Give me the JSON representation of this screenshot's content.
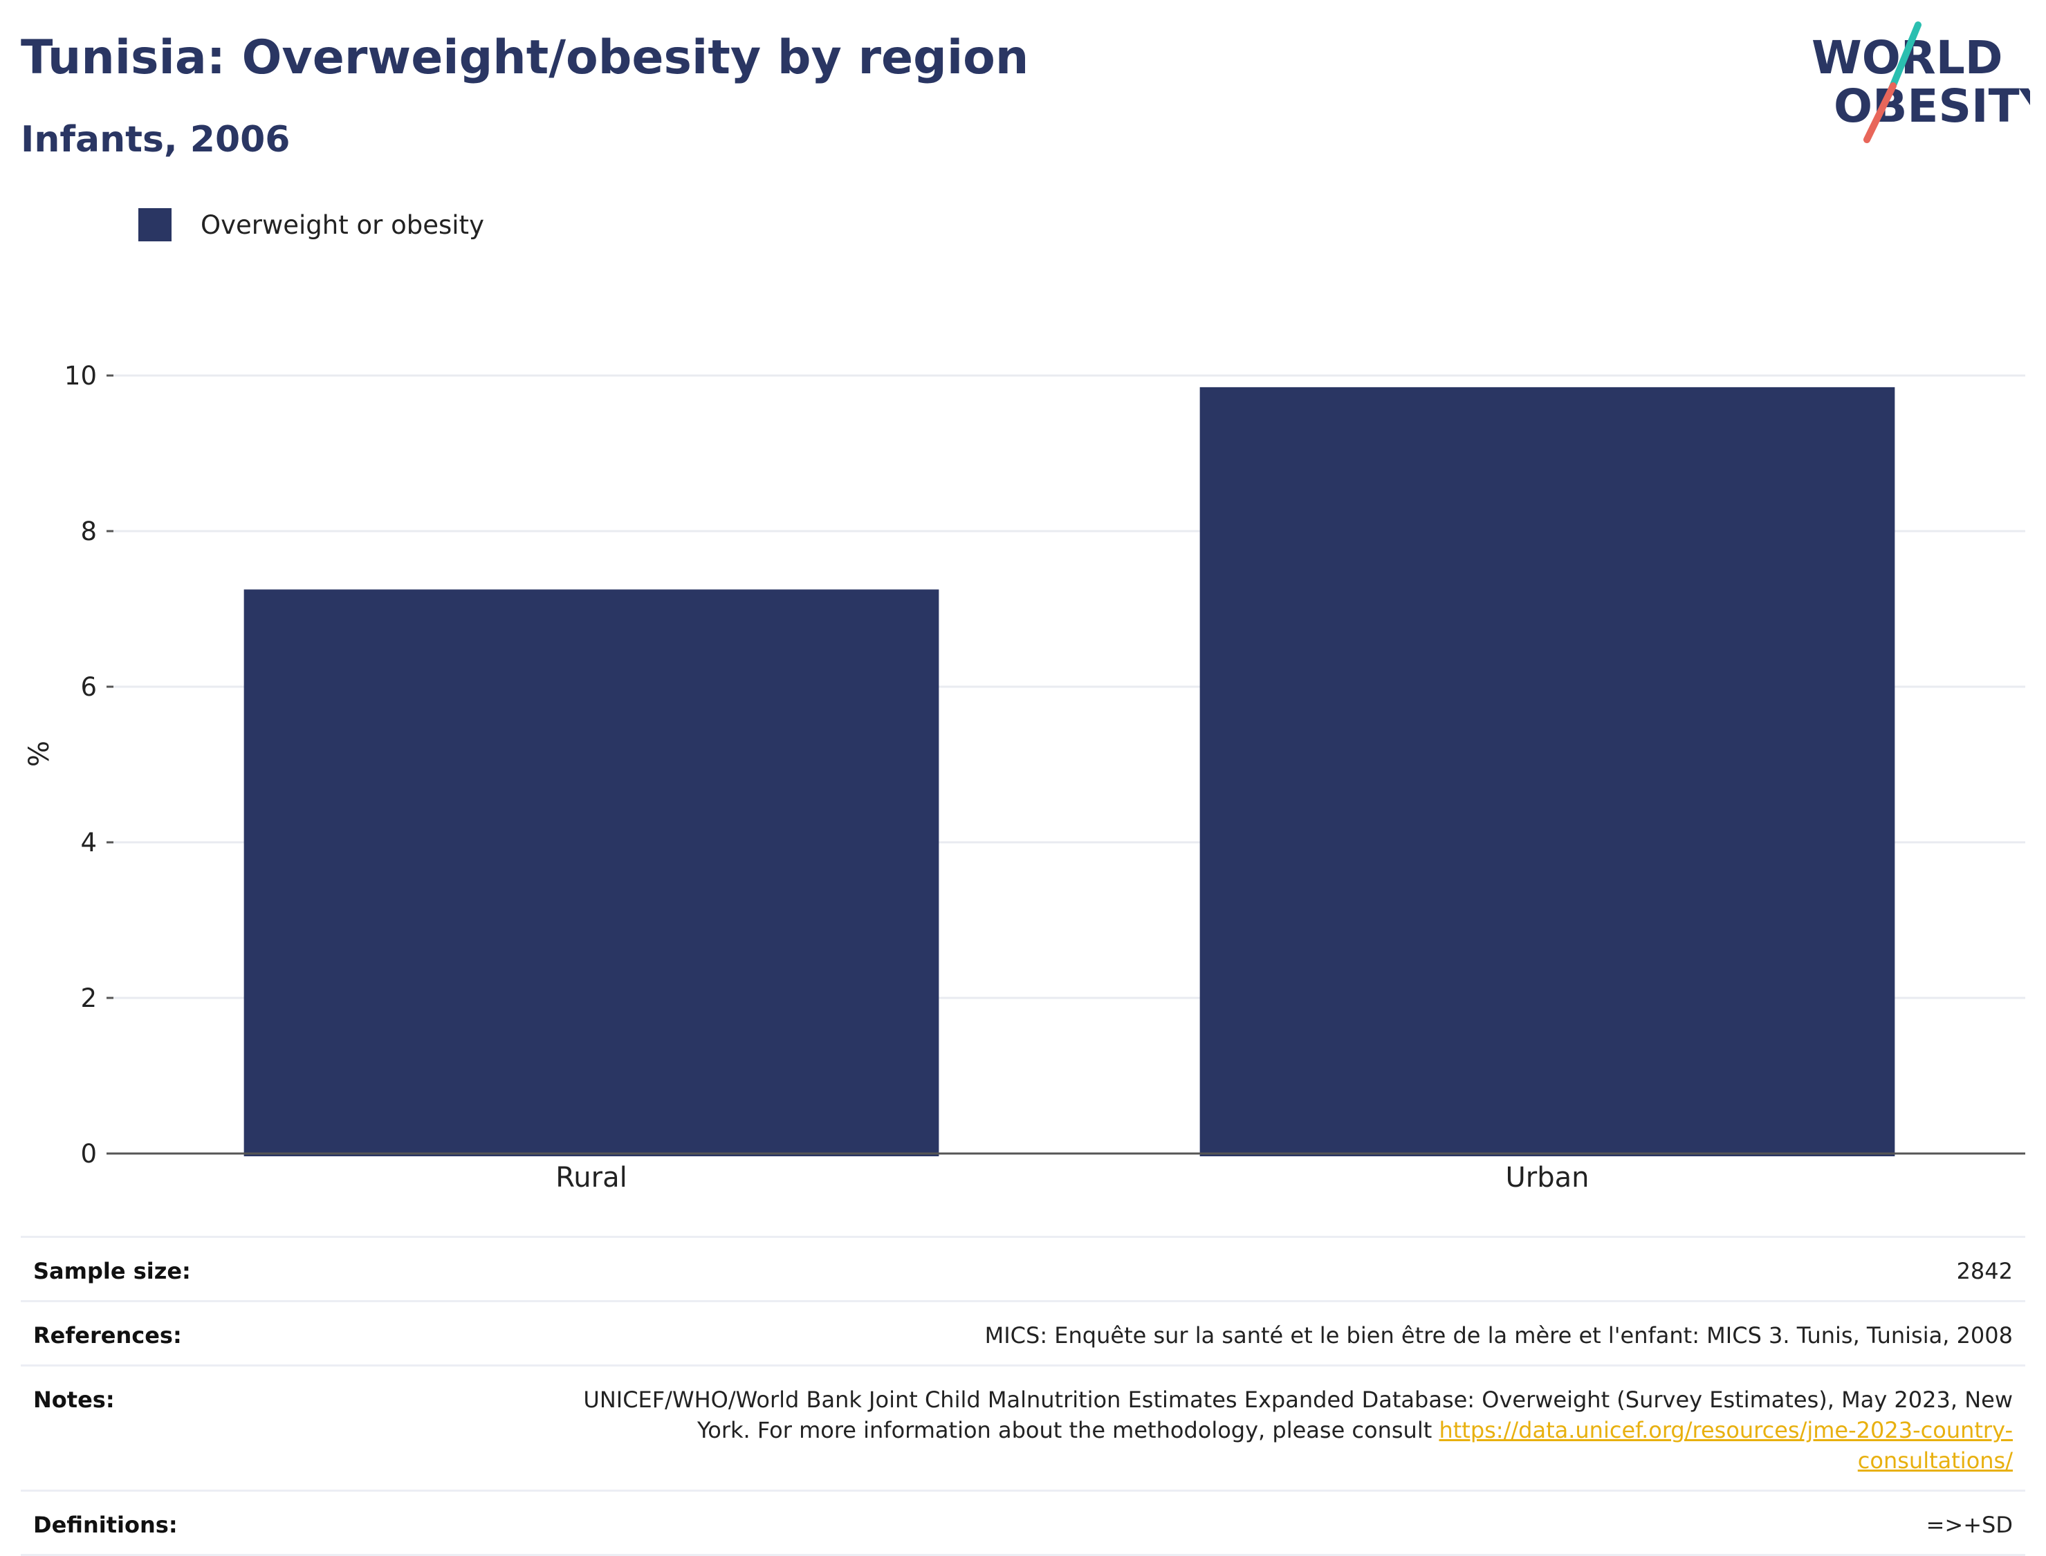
{
  "header": {
    "title": "Tunisia: Overweight/obesity by region",
    "subtitle": "Infants, 2006"
  },
  "logo": {
    "line1": "WORLD",
    "line2": "OBESITY",
    "text_color": "#2a3663",
    "slash_colors": [
      "#2bbfb0",
      "#e8665a"
    ]
  },
  "legend": {
    "label": "Overweight or obesity",
    "color": "#2a3663"
  },
  "chart_data": {
    "type": "bar",
    "categories": [
      "Rural",
      "Urban"
    ],
    "series": [
      {
        "name": "Overweight or obesity",
        "values": [
          7.25,
          9.85
        ],
        "color": "#2a3663"
      }
    ],
    "ylabel": "%",
    "ylim": [
      0,
      10
    ],
    "yticks": [
      0,
      2,
      4,
      6,
      8,
      10
    ],
    "grid": true,
    "legend_position": "top-left"
  },
  "info": {
    "sample_size_label": "Sample size:",
    "sample_size_value": "2842",
    "references_label": "References:",
    "references_value": "MICS: Enquête sur la santé et le bien être de la mère et l'enfant: MICS 3. Tunis, Tunisia, 2008",
    "notes_label": "Notes:",
    "notes_value": "UNICEF/WHO/World Bank Joint Child Malnutrition Estimates Expanded Database: Overweight (Survey Estimates), May 2023, New York. For more information about the methodology, please consult ",
    "notes_link": "https://data.unicef.org/resources/jme-2023-country-consultations/",
    "definitions_label": "Definitions:",
    "definitions_value": "=>+SD"
  }
}
